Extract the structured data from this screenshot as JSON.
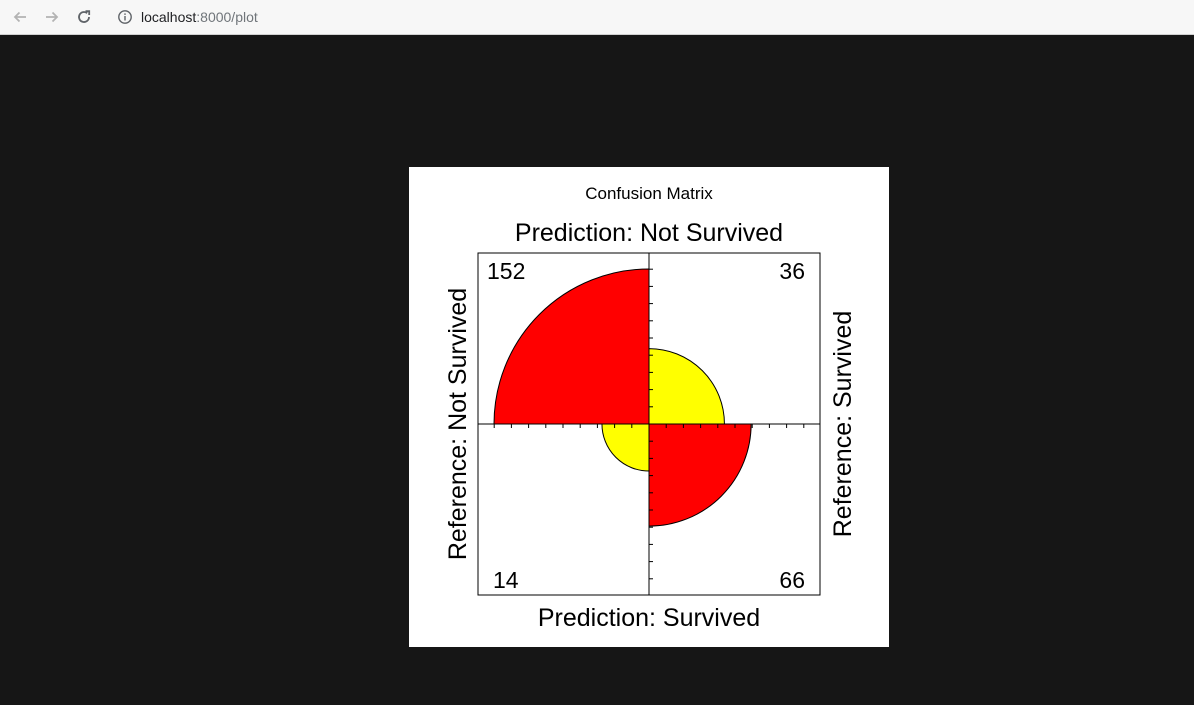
{
  "browser": {
    "url_host": "localhost",
    "url_path": ":8000/plot",
    "icons": {
      "back": "arrow-left-icon",
      "forward": "arrow-right-icon",
      "reload": "reload-icon",
      "info": "info-icon"
    }
  },
  "chart_data": {
    "type": "fourfold",
    "title": "Confusion Matrix",
    "top_label": "Prediction: Not Survived",
    "bottom_label": "Prediction: Survived",
    "left_label": "Reference: Not Survived",
    "right_label": "Reference: Survived",
    "cells": [
      {
        "name": "top-left",
        "prediction": "Not Survived",
        "reference": "Not Survived",
        "count": 152,
        "label": "152",
        "color": "#ff0000"
      },
      {
        "name": "top-right",
        "prediction": "Not Survived",
        "reference": "Survived",
        "count": 36,
        "label": "36",
        "color": "#ffff00"
      },
      {
        "name": "bottom-left",
        "prediction": "Survived",
        "reference": "Not Survived",
        "count": 14,
        "label": "14",
        "color": "#ffff00"
      },
      {
        "name": "bottom-right",
        "prediction": "Survived",
        "reference": "Survived",
        "count": 66,
        "label": "66",
        "color": "#ff0000"
      }
    ],
    "colors": {
      "correct": "#ff0000",
      "incorrect": "#ffff00"
    }
  }
}
